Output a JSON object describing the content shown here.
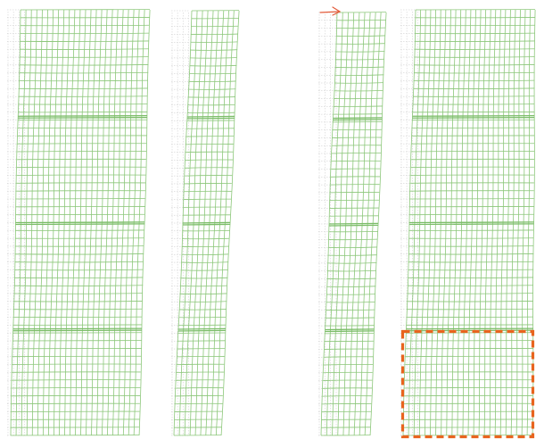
{
  "figure": {
    "panels": [
      {
        "id": "panel-1",
        "columns": 24
      },
      {
        "id": "panel-2",
        "columns": 9
      },
      {
        "id": "panel-3",
        "columns": 9
      },
      {
        "id": "panel-4",
        "columns": 24
      }
    ],
    "rows_per_panel": 54,
    "tiers": 4,
    "mesh_color": "#8cc77a",
    "mesh_seam_color": "#7bbd68",
    "reference_color": "#bdbdbd",
    "load_arrow": {
      "panel": "panel-3",
      "direction": "right",
      "color": "#e35b3a"
    },
    "highlight_region": {
      "panel": "panel-4",
      "tier": 4,
      "style": "dashed",
      "color": "#e8641e"
    }
  }
}
